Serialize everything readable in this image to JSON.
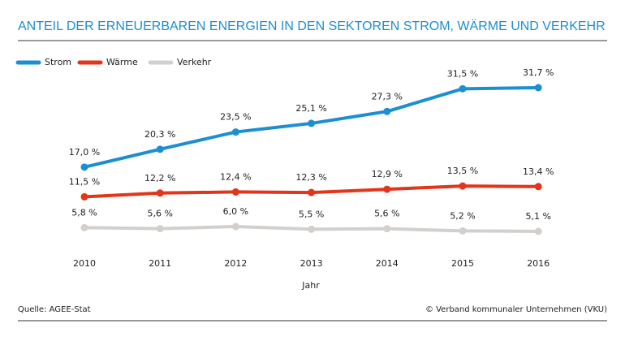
{
  "chart_data": {
    "type": "line",
    "title": "ANTEIL DER ERNEUERBAREN ENERGIEN IN DEN SEKTOREN STROM, WÄRME UND VERKEHR",
    "categories": [
      "2010",
      "2011",
      "2012",
      "2013",
      "2014",
      "2015",
      "2016"
    ],
    "x_label": "Jahr",
    "series": [
      {
        "name": "Strom",
        "color": "#1b8fd2",
        "values": [
          17.0,
          20.3,
          23.5,
          25.1,
          27.3,
          31.5,
          31.7
        ],
        "value_labels": [
          "17,0 %",
          "20,3 %",
          "23,5 %",
          "25,1 %",
          "27,3 %",
          "31,5 %",
          "31,7 %"
        ]
      },
      {
        "name": "Wärme",
        "color": "#e3351a",
        "values": [
          11.5,
          12.2,
          12.4,
          12.3,
          12.9,
          13.5,
          13.4
        ],
        "value_labels": [
          "11,5 %",
          "12,2 %",
          "12,4 %",
          "12,3 %",
          "12,9 %",
          "13,5 %",
          "13,4 %"
        ]
      },
      {
        "name": "Verkehr",
        "color": "#d3cfcc",
        "values": [
          5.8,
          5.6,
          6.0,
          5.5,
          5.6,
          5.2,
          5.1
        ],
        "value_labels": [
          "5,8 %",
          "5,6 %",
          "6,0 %",
          "5,5 %",
          "5,6 %",
          "5,2 %",
          "5,1 %"
        ]
      }
    ],
    "source": "Quelle: AGEE-Stat",
    "copyright": "© Verband kommunaler Unternehmen (VKU)"
  }
}
